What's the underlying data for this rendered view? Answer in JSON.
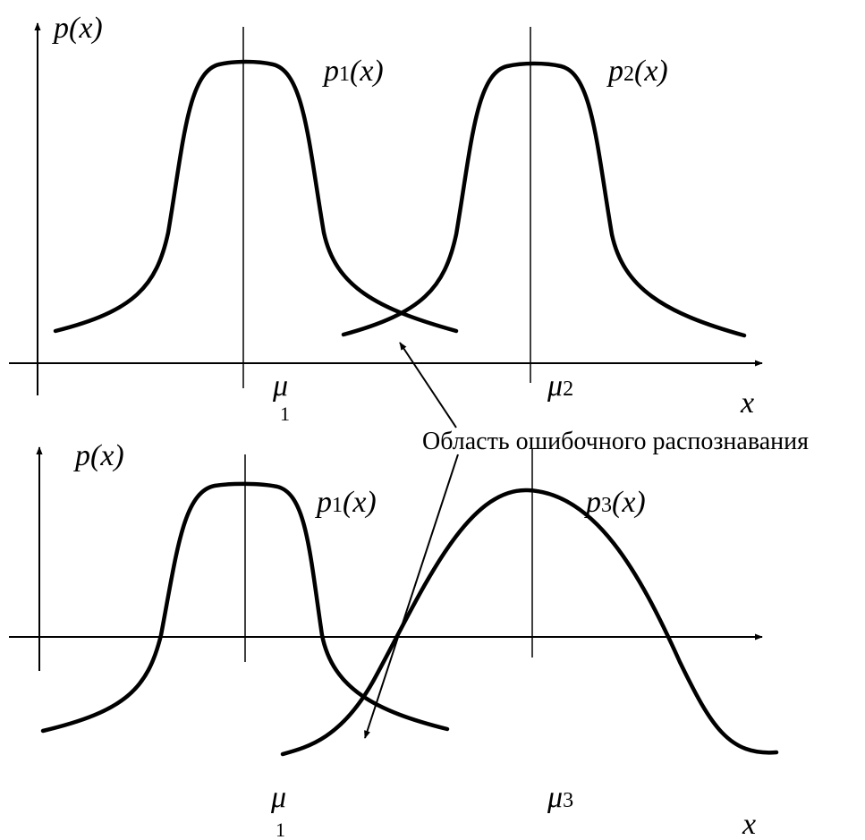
{
  "top_panel": {
    "y_axis_label": "p(x)",
    "x_axis_label": "x",
    "curves": [
      {
        "func": "p",
        "sub": "1",
        "arg": "(x)"
      },
      {
        "func": "p",
        "sub": "2",
        "arg": "(x)"
      }
    ],
    "means": [
      {
        "sym": "μ",
        "sub": "1"
      },
      {
        "sym": "μ",
        "sub": "2"
      }
    ]
  },
  "bottom_panel": {
    "y_axis_label": "p(x)",
    "x_axis_label": "x",
    "curves": [
      {
        "func": "p",
        "sub": "1",
        "arg": "(x)"
      },
      {
        "func": "p",
        "sub": "3",
        "arg": "(x)"
      }
    ],
    "means": [
      {
        "sym": "μ",
        "sub": "1"
      },
      {
        "sym": "μ",
        "sub": "3"
      }
    ]
  },
  "annotation": "Область ошибочного распознавания"
}
